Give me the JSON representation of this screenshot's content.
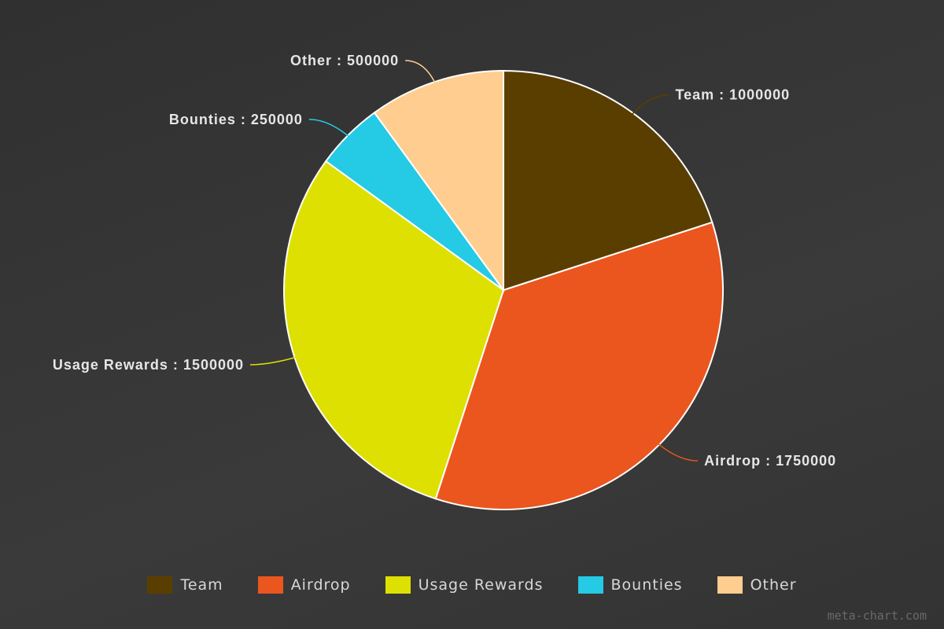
{
  "chart_data": {
    "type": "pie",
    "slices": [
      {
        "label": "Team",
        "value": 1000000,
        "color": "#5a3e00",
        "display": "Team : 1000000"
      },
      {
        "label": "Airdrop",
        "value": 1750000,
        "color": "#ea561e",
        "display": "Airdrop : 1750000"
      },
      {
        "label": "Usage Rewards",
        "value": 1500000,
        "color": "#dde000",
        "display": "Usage Rewards : 1500000"
      },
      {
        "label": "Bounties",
        "value": 250000,
        "color": "#25cae4",
        "display": "Bounties : 250000"
      },
      {
        "label": "Other",
        "value": 500000,
        "color": "#ffcd8f",
        "display": "Other : 500000"
      }
    ],
    "legend_position": "bottom-center",
    "start_angle_deg": 0,
    "direction": "clockwise",
    "slice_border_color": "#ffffff"
  },
  "watermark": "meta-chart.com"
}
